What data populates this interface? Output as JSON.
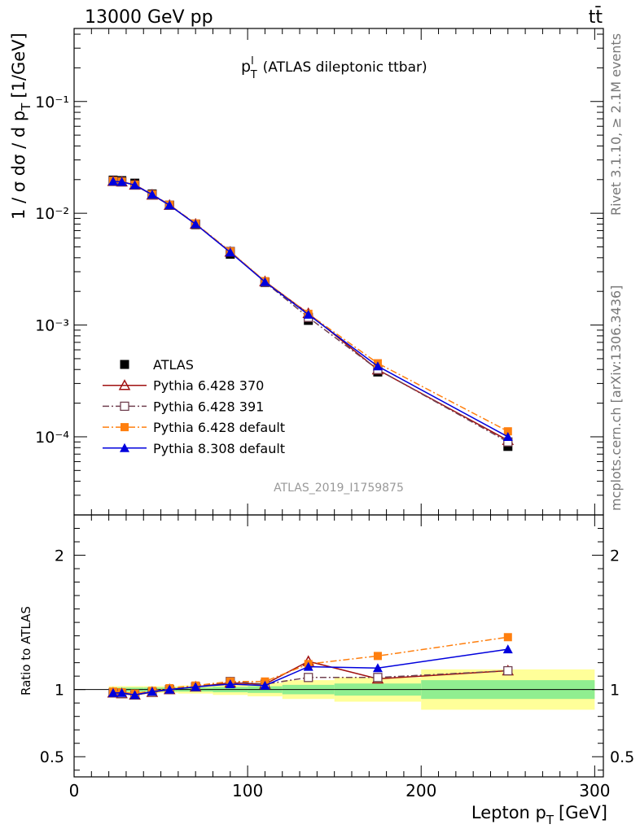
{
  "header": {
    "left": "13000 GeV pp",
    "right": "tt̄"
  },
  "side_labels": {
    "rivet": "Rivet 3.1.10, ≥ 2.1M events",
    "mcplots": "mcplots.cern.ch [arXiv:1306.3436]"
  },
  "chart_data": {
    "type": "line",
    "title_main": "p",
    "title_sup": "l",
    "title_sub": "T",
    "title_rest": "(ATLAS dileptonic ttbar)",
    "analysis": "ATLAS_2019_I1759875",
    "xlabel_main": "Lepton p",
    "xlabel_sub": "T",
    "xlabel_rest": "[GeV]",
    "ylabel_main": "1 / σ  dσ / d p",
    "ylabel_sub": "T",
    "ylabel_rest": "[1/GeV]",
    "ratio_ylabel": "Ratio to ATLAS",
    "xlim": [
      0,
      305
    ],
    "ylim": [
      2e-05,
      0.45
    ],
    "ylog": true,
    "ratio_ylim": [
      0.35,
      2.3
    ],
    "x_ticks": [
      "0",
      "100",
      "200",
      "300"
    ],
    "y_ticks": [
      "10⁻⁴",
      "10⁻³",
      "10⁻²",
      "10⁻¹"
    ],
    "ratio_ticks": [
      "0.5",
      "1",
      "2"
    ],
    "legend_position": "middle-left",
    "x": [
      22.5,
      27.5,
      35,
      45,
      55,
      70,
      90,
      110,
      135,
      175,
      250
    ],
    "bin_edges": [
      20,
      25,
      30,
      40,
      50,
      60,
      80,
      100,
      120,
      150,
      200,
      300
    ],
    "series": [
      {
        "name": "ATLAS",
        "color": "#000000",
        "marker": "square-filled",
        "values": [
          0.0198,
          0.0196,
          0.0186,
          0.0149,
          0.0118,
          0.0079,
          0.0043,
          0.0024,
          0.0011,
          0.00038,
          8.2e-05
        ]
      },
      {
        "name": "Pythia 6.428 370",
        "color": "#a01010",
        "marker": "triangle-open",
        "dash": "",
        "values": [
          0.0193,
          0.0191,
          0.0179,
          0.0146,
          0.0118,
          0.008,
          0.0045,
          0.00245,
          0.00127,
          0.000398,
          9.3e-05
        ]
      },
      {
        "name": "Pythia 6.428 391",
        "color": "#704050",
        "marker": "square-open",
        "dash": "8,3,2,3",
        "values": [
          0.0193,
          0.0191,
          0.0179,
          0.0146,
          0.0118,
          0.008,
          0.00455,
          0.00242,
          0.00117,
          0.0004,
          9e-05
        ]
      },
      {
        "name": "Pythia 6.428 default",
        "color": "#ff7f0e",
        "marker": "square-filled",
        "dash": "8,3,2,3",
        "values": [
          0.0195,
          0.0192,
          0.018,
          0.0148,
          0.0119,
          0.0081,
          0.00455,
          0.00247,
          0.00126,
          0.000455,
          0.000112
        ]
      },
      {
        "name": "Pythia 8.308 default",
        "color": "#0000dd",
        "marker": "triangle-filled",
        "dash": "",
        "values": [
          0.0193,
          0.0191,
          0.0179,
          0.0147,
          0.0118,
          0.008,
          0.00447,
          0.00243,
          0.00124,
          0.000428,
          0.0001
        ]
      }
    ],
    "ratio_series": [
      {
        "name": "Pythia 6.428 370",
        "values": [
          0.975,
          0.97,
          0.96,
          0.98,
          1.0,
          1.02,
          1.05,
          1.04,
          1.21,
          1.08,
          1.14
        ]
      },
      {
        "name": "Pythia 6.428 391",
        "values": [
          0.975,
          0.97,
          0.96,
          0.98,
          1.0,
          1.02,
          1.06,
          1.04,
          1.09,
          1.09,
          1.14
        ]
      },
      {
        "name": "Pythia 6.428 default",
        "values": [
          0.985,
          0.98,
          0.97,
          0.99,
          1.01,
          1.03,
          1.06,
          1.06,
          1.19,
          1.25,
          1.39
        ]
      },
      {
        "name": "Pythia 8.308 default",
        "values": [
          0.975,
          0.975,
          0.96,
          0.985,
          1.0,
          1.02,
          1.04,
          1.03,
          1.17,
          1.16,
          1.3
        ]
      }
    ],
    "ratio_band_green": [
      0.015,
      0.015,
      0.015,
      0.015,
      0.015,
      0.015,
      0.02,
      0.025,
      0.035,
      0.045,
      0.07
    ],
    "ratio_band_yellow": [
      0.025,
      0.025,
      0.025,
      0.025,
      0.025,
      0.03,
      0.04,
      0.05,
      0.07,
      0.09,
      0.15
    ]
  }
}
